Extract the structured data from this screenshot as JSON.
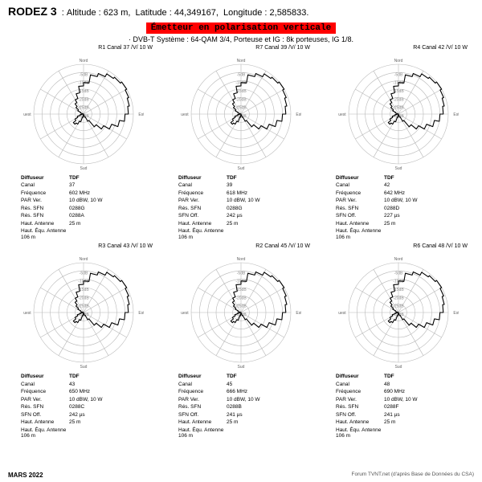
{
  "header": {
    "name": "RODEZ 3",
    "altitude": "623 m",
    "latitude": "44,349167",
    "longitude": "2,585833",
    "banner": "Émetteur en polarisation verticale",
    "banner_bg": "#ff0000",
    "banner_fg": "#000000",
    "system_line": "· DVB-T   Système : 64-QAM 3/4,   Porteuse et IG : 8k porteuses, IG 1/8."
  },
  "footer": {
    "left": "MARS 2022",
    "right": "Forum TVNT.net (d'après Base de Données du CSA)"
  },
  "polar": {
    "size": 150,
    "radius": 62,
    "rings_db": [
      -5,
      -10,
      -15,
      -20,
      -25,
      -30
    ],
    "cardinals": [
      "Nord",
      "Est",
      "Sud",
      "Ouest"
    ],
    "line_color": "#000000",
    "grid_color": "#b8b8b8",
    "bg": "#ffffff"
  },
  "charts": [
    {
      "title": "R1  Canal 37 /V/  10 W",
      "info": [
        [
          "Diffuseur",
          "TDF"
        ],
        [
          "Canal",
          "37"
        ],
        [
          "Fréquence",
          "602 MHz"
        ],
        [
          "PAR Ver.",
          "10 dBW, 10 W"
        ],
        [
          "Rés. SFN",
          "0288G"
        ],
        [
          "Rés. SFN",
          "0288A"
        ],
        [
          "Haut. Antenne",
          "25 m"
        ],
        [
          "Haut. Équ. Antenne 106 m",
          ""
        ]
      ],
      "lobe": [
        -11,
        -6,
        -4,
        -2,
        -1,
        0,
        -1,
        -2,
        -3,
        -5,
        -8,
        -12,
        -16,
        -20,
        -25,
        -28,
        -30,
        -30,
        -30,
        -28,
        -25,
        -23,
        -22,
        -24,
        -26,
        -28,
        -29,
        -30,
        -30,
        -28,
        -26,
        -24,
        -22,
        -20,
        -17,
        -13
      ]
    },
    {
      "title": "R7  Canal 39 /V/  10 W",
      "info": [
        [
          "Diffuseur",
          "TDF"
        ],
        [
          "Canal",
          "39"
        ],
        [
          "Fréquence",
          "618 MHz"
        ],
        [
          "PAR Ver.",
          "10 dBW, 10 W"
        ],
        [
          "Rés. SFN",
          "0288G"
        ],
        [
          "SFN Off.",
          "242 µs"
        ],
        [
          "Haut. Antenne",
          "25 m"
        ],
        [
          "Haut. Équ. Antenne 106 m",
          ""
        ]
      ],
      "lobe": [
        -11,
        -6,
        -4,
        -2,
        -1,
        0,
        -1,
        -2,
        -3,
        -5,
        -8,
        -12,
        -16,
        -20,
        -25,
        -28,
        -30,
        -30,
        -30,
        -28,
        -25,
        -23,
        -22,
        -24,
        -26,
        -28,
        -29,
        -30,
        -30,
        -28,
        -26,
        -24,
        -22,
        -20,
        -17,
        -13
      ]
    },
    {
      "title": "R4  Canal 42 /V/  10 W",
      "info": [
        [
          "Diffuseur",
          "TDF"
        ],
        [
          "Canal",
          "42"
        ],
        [
          "Fréquence",
          "642 MHz"
        ],
        [
          "PAR Ver.",
          "10 dBW, 10 W"
        ],
        [
          "Rés. SFN",
          "0288D"
        ],
        [
          "SFN Off.",
          "227 µs"
        ],
        [
          "Haut. Antenne",
          "25 m"
        ],
        [
          "Haut. Équ. Antenne 106 m",
          ""
        ]
      ],
      "lobe": [
        -11,
        -6,
        -4,
        -2,
        -1,
        0,
        -1,
        -2,
        -3,
        -5,
        -8,
        -12,
        -16,
        -20,
        -25,
        -28,
        -30,
        -30,
        -30,
        -28,
        -25,
        -23,
        -22,
        -24,
        -26,
        -28,
        -29,
        -30,
        -30,
        -28,
        -26,
        -24,
        -22,
        -20,
        -17,
        -13
      ]
    },
    {
      "title": "R3  Canal 43 /V/  10 W",
      "info": [
        [
          "Diffuseur",
          "TDF"
        ],
        [
          "Canal",
          "43"
        ],
        [
          "Fréquence",
          "650 MHz"
        ],
        [
          "PAR Ver.",
          "10 dBW, 10 W"
        ],
        [
          "Rés. SFN",
          "0288C"
        ],
        [
          "SFN Off.",
          "242 µs"
        ],
        [
          "Haut. Antenne",
          "25 m"
        ],
        [
          "Haut. Équ. Antenne 106 m",
          ""
        ]
      ],
      "lobe": [
        -11,
        -6,
        -4,
        -2,
        -1,
        0,
        -1,
        -2,
        -3,
        -5,
        -8,
        -12,
        -16,
        -20,
        -25,
        -28,
        -30,
        -30,
        -30,
        -28,
        -25,
        -23,
        -22,
        -24,
        -26,
        -28,
        -29,
        -30,
        -30,
        -28,
        -26,
        -24,
        -22,
        -20,
        -17,
        -13
      ]
    },
    {
      "title": "R2  Canal 45 /V/  10 W",
      "info": [
        [
          "Diffuseur",
          "TDF"
        ],
        [
          "Canal",
          "45"
        ],
        [
          "Fréquence",
          "666 MHz"
        ],
        [
          "PAR Ver.",
          "10 dBW, 10 W"
        ],
        [
          "Rés. SFN",
          "0288B"
        ],
        [
          "SFN Off.",
          "241 µs"
        ],
        [
          "Haut. Antenne",
          "25 m"
        ],
        [
          "Haut. Équ. Antenne 106 m",
          ""
        ]
      ],
      "lobe": [
        -11,
        -6,
        -4,
        -2,
        -1,
        0,
        -1,
        -2,
        -3,
        -5,
        -8,
        -12,
        -16,
        -20,
        -25,
        -28,
        -30,
        -30,
        -30,
        -28,
        -25,
        -23,
        -22,
        -24,
        -26,
        -28,
        -29,
        -30,
        -30,
        -28,
        -26,
        -24,
        -22,
        -20,
        -17,
        -13
      ]
    },
    {
      "title": "R6  Canal 48 /V/  10 W",
      "info": [
        [
          "Diffuseur",
          "TDF"
        ],
        [
          "Canal",
          "48"
        ],
        [
          "Fréquence",
          "690 MHz"
        ],
        [
          "PAR Ver.",
          "10 dBW, 10 W"
        ],
        [
          "Rés. SFN",
          "0288F"
        ],
        [
          "SFN Off.",
          "241 µs"
        ],
        [
          "Haut. Antenne",
          "25 m"
        ],
        [
          "Haut. Équ. Antenne 106 m",
          ""
        ]
      ],
      "lobe": [
        -11,
        -6,
        -4,
        -2,
        -1,
        0,
        -1,
        -2,
        -3,
        -5,
        -8,
        -12,
        -16,
        -20,
        -25,
        -28,
        -30,
        -30,
        -30,
        -28,
        -25,
        -23,
        -22,
        -24,
        -26,
        -28,
        -29,
        -30,
        -30,
        -28,
        -26,
        -24,
        -22,
        -20,
        -17,
        -13
      ]
    }
  ]
}
